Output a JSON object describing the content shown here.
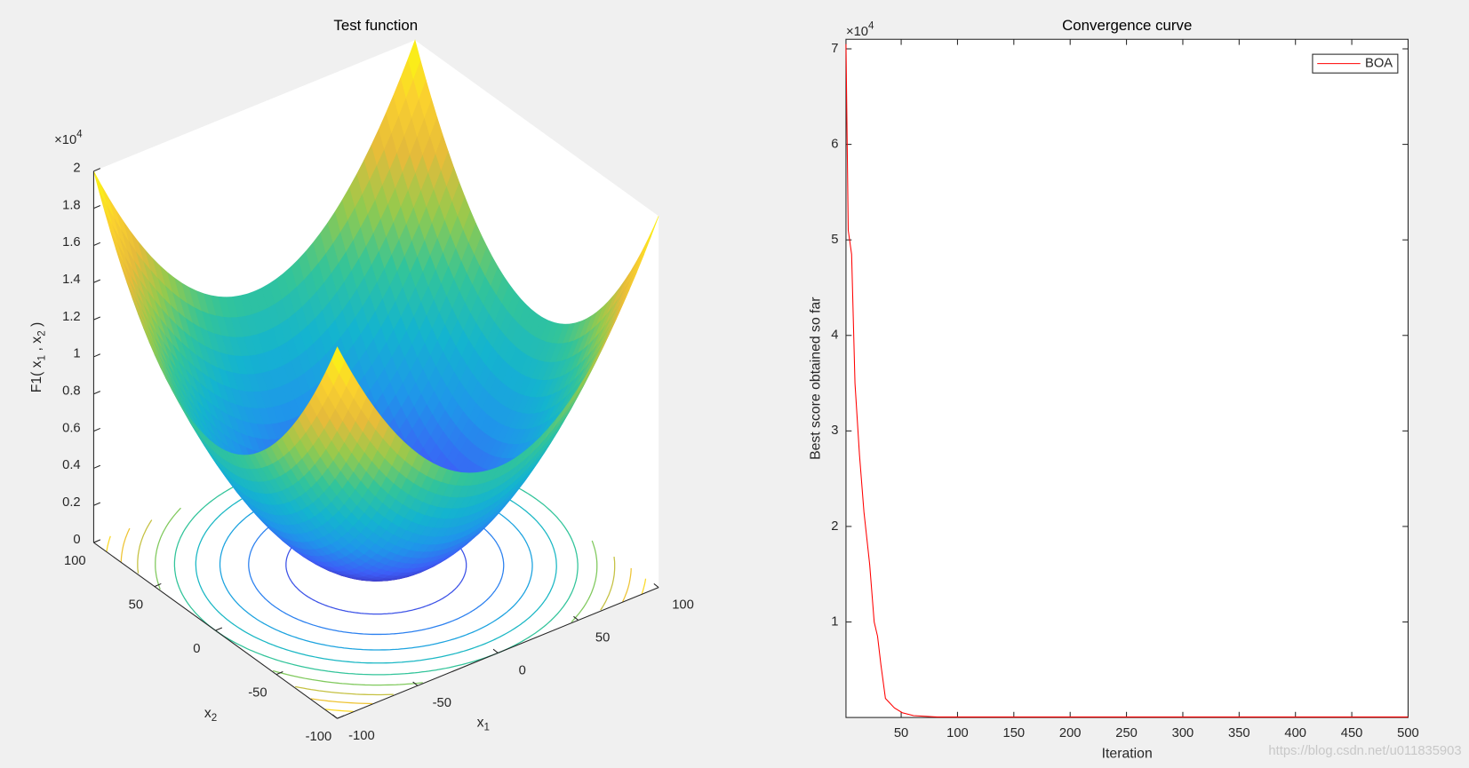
{
  "chart_data": [
    {
      "type": "surface",
      "title": "Test function",
      "xlabel": [
        "x",
        "1"
      ],
      "ylabel": [
        "x",
        "2"
      ],
      "zlabel": [
        "F1( x",
        "1",
        " , x",
        "2",
        " )"
      ],
      "z_multiplier": [
        "×10",
        "4"
      ],
      "xlim": [
        -100,
        100
      ],
      "xticks": [
        -100,
        -50,
        0,
        50,
        100
      ],
      "ylim": [
        -100,
        100
      ],
      "yticks": [
        -100,
        -50,
        0,
        50,
        100
      ],
      "zlim": [
        0,
        2
      ],
      "zticks": [
        0,
        0.2,
        0.4,
        0.6,
        0.8,
        1,
        1.2,
        1.4,
        1.6,
        1.8,
        2
      ],
      "colormap": [
        "#3e26a8",
        "#3d5ef7",
        "#1f96ea",
        "#14b4cf",
        "#32c49a",
        "#93ca4e",
        "#e6bb3a",
        "#fbd22e",
        "#f9fb0e"
      ],
      "contours": true
    },
    {
      "type": "line",
      "title": "Convergence curve",
      "xlabel": "Iteration",
      "ylabel": "Best score obtained so far",
      "y_multiplier": [
        "×10",
        "4"
      ],
      "x": [
        1,
        3,
        6,
        9,
        13,
        17,
        22,
        26,
        29,
        32,
        36,
        40,
        44,
        51,
        61,
        82,
        500
      ],
      "series": [
        {
          "name": "BOA",
          "color": "#ff0000",
          "values": [
            7.05,
            5.1,
            4.85,
            3.5,
            2.75,
            2.15,
            1.6,
            1.0,
            0.85,
            0.55,
            0.2,
            0.15,
            0.1,
            0.05,
            0.02,
            0.005,
            0.005
          ]
        }
      ],
      "xlim": [
        1,
        500
      ],
      "xticks": [
        50,
        100,
        150,
        200,
        250,
        300,
        350,
        400,
        450,
        500
      ],
      "ylim": [
        0,
        7.1
      ],
      "yticks": [
        1,
        2,
        3,
        4,
        5,
        6,
        7
      ],
      "legend": "upper right",
      "box": true
    }
  ],
  "watermark": "https://blog.csdn.net/u011835903"
}
